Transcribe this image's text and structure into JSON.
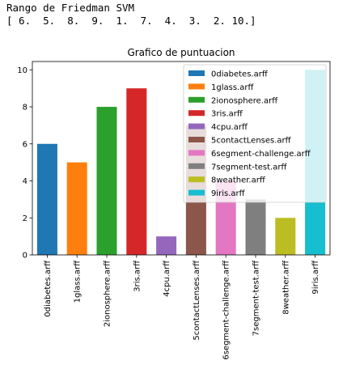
{
  "console": {
    "line1": "Rango de Friedman SVM",
    "line2": "[ 6.  5.  8.  9.  1.  7.  4.  3.  2. 10.]"
  },
  "chart_data": {
    "type": "bar",
    "title": "Grafico de puntuacion",
    "xlabel": "",
    "ylabel": "",
    "ylim": [
      0,
      10.45
    ],
    "yticks": [
      0,
      2,
      4,
      6,
      8,
      10
    ],
    "grid": false,
    "legend_position": "top-right",
    "categories": [
      "0diabetes.arff",
      "1glass.arff",
      "2ionosphere.arff",
      "3ris.arff",
      "4cpu.arff",
      "5contactLenses.arff",
      "6segment-challenge.arff",
      "7segment-test.arff",
      "8weather.arff",
      "9iris.arff"
    ],
    "values": [
      6,
      5,
      8,
      9,
      1,
      7,
      4,
      3,
      2,
      10
    ],
    "colors": [
      "#1f77b4",
      "#ff7f0e",
      "#2ca02c",
      "#d62728",
      "#9467bd",
      "#8c564b",
      "#e377c2",
      "#7f7f7f",
      "#bcbd22",
      "#17becf"
    ]
  }
}
